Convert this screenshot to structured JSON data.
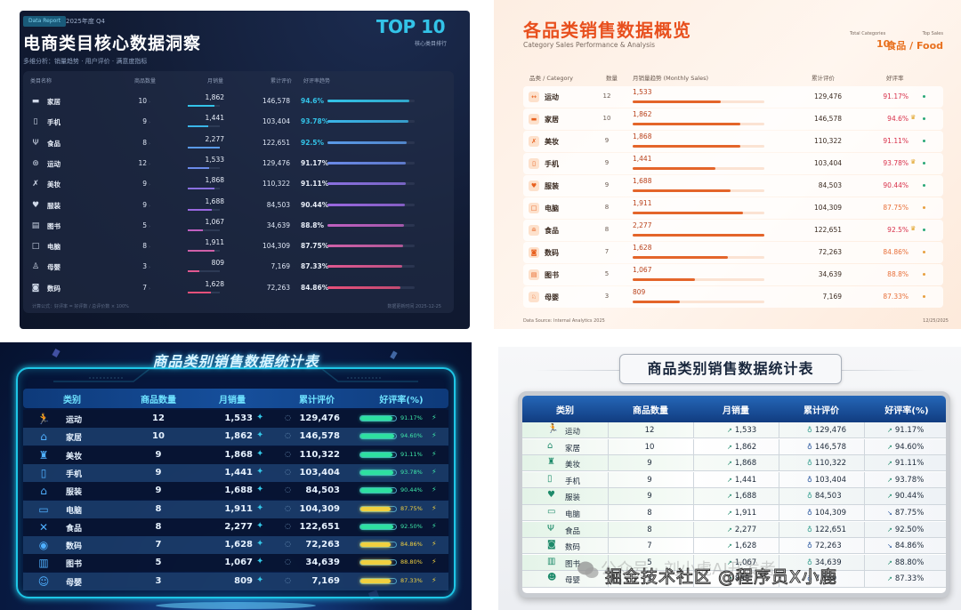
{
  "colors": {
    "p1_accent": "#33c3e8",
    "p2_accent": "#e8501e",
    "p3_accent": "#1ec6e6",
    "p4_header": "#1a4f98"
  },
  "panel1": {
    "tag": "Data Report",
    "period": "2025年度 Q4",
    "title": "电商类目核心数据洞察",
    "subtitle": "多维分析：销量趋势 · 用户评价 · 满意度指标",
    "badge": "TOP 10",
    "badge_sub": "核心类目排行",
    "headers": [
      "类目名称",
      "商品数量",
      "月销量",
      "累计评价",
      "好评率趋势"
    ],
    "rows": [
      {
        "icon": "sofa-icon",
        "glyph": "▬",
        "name": "家居",
        "count": "10",
        "sales": "1,862",
        "sales_pct": 82,
        "reviews": "146,578",
        "rating": "94.6%",
        "rating_pct": 94,
        "color": "#33c3e8",
        "rating_color": "#33c3e8"
      },
      {
        "icon": "phone-icon",
        "glyph": "▯",
        "name": "手机",
        "count": "9",
        "sales": "1,441",
        "sales_pct": 63,
        "reviews": "103,404",
        "rating": "93.78%",
        "rating_pct": 93,
        "color": "#3ab5e8",
        "rating_color": "#33c3e8"
      },
      {
        "icon": "utensils-icon",
        "glyph": "Ψ",
        "name": "食品",
        "count": "8",
        "sales": "2,277",
        "sales_pct": 100,
        "reviews": "122,651",
        "rating": "92.5%",
        "rating_pct": 91,
        "color": "#5a9ae8",
        "rating_color": "#33c3e8"
      },
      {
        "icon": "ball-icon",
        "glyph": "⊛",
        "name": "运动",
        "count": "12",
        "sales": "1,533",
        "sales_pct": 67,
        "reviews": "129,476",
        "rating": "91.17%",
        "rating_pct": 90,
        "color": "#6a8ae8",
        "rating_color": "#e8eef8"
      },
      {
        "icon": "makeup-icon",
        "glyph": "✗",
        "name": "美妆",
        "count": "9",
        "sales": "1,868",
        "sales_pct": 82,
        "reviews": "110,322",
        "rating": "91.11%",
        "rating_pct": 90,
        "color": "#8a70e0",
        "rating_color": "#e8eef8"
      },
      {
        "icon": "shirt-icon",
        "glyph": "♥",
        "name": "服装",
        "count": "9",
        "sales": "1,688",
        "sales_pct": 74,
        "reviews": "84,503",
        "rating": "90.44%",
        "rating_pct": 89,
        "color": "#9a68e0",
        "rating_color": "#e8eef8"
      },
      {
        "icon": "book-icon",
        "glyph": "▤",
        "name": "图书",
        "count": "5",
        "sales": "1,067",
        "sales_pct": 47,
        "reviews": "34,639",
        "rating": "88.8%",
        "rating_pct": 88,
        "color": "#c060c0",
        "rating_color": "#e8eef8"
      },
      {
        "icon": "laptop-icon",
        "glyph": "□",
        "name": "电脑",
        "count": "8",
        "sales": "1,911",
        "sales_pct": 84,
        "reviews": "104,309",
        "rating": "87.75%",
        "rating_pct": 87,
        "color": "#d060a8",
        "rating_color": "#e8eef8"
      },
      {
        "icon": "baby-icon",
        "glyph": "♙",
        "name": "母婴",
        "count": "3",
        "sales": "809",
        "sales_pct": 36,
        "reviews": "7,169",
        "rating": "87.33%",
        "rating_pct": 86,
        "color": "#e05890",
        "rating_color": "#e8eef8"
      },
      {
        "icon": "camera-icon",
        "glyph": "◙",
        "name": "数码",
        "count": "7",
        "sales": "1,628",
        "sales_pct": 72,
        "reviews": "72,263",
        "rating": "84.86%",
        "rating_pct": 84,
        "color": "#e8507a",
        "rating_color": "#e8eef8"
      }
    ],
    "footer_left": "计算公式：好评率 = 好评数 / 总评价数 × 100%",
    "footer_right": "数据更新时间 2025-12-25"
  },
  "panel2": {
    "title": "各品类销售数据概览",
    "subtitle": "Category Sales Performance & Analysis",
    "stat1_label": "Total Categories",
    "stat1_value": "10",
    "stat2_label": "Top Sales",
    "stat2_value": "食品 / Food",
    "headers": [
      "品类 / Category",
      "数量",
      "月销量趋势 (Monthly Sales)",
      "累计评价",
      "好评率"
    ],
    "rows": [
      {
        "icon": "dumbbell-icon",
        "glyph": "↔",
        "name": "运动",
        "count": "12",
        "sales": "1,533",
        "sales_pct": 67,
        "reviews": "129,476",
        "rating": "91.17%",
        "crown": "",
        "rating_color": "#d8304a",
        "dot": "#2aa878"
      },
      {
        "icon": "sofa-icon",
        "glyph": "▬",
        "name": "家居",
        "count": "10",
        "sales": "1,862",
        "sales_pct": 82,
        "reviews": "146,578",
        "rating": "94.6%",
        "crown": "♛",
        "rating_color": "#d8304a",
        "dot": "#2aa878"
      },
      {
        "icon": "makeup-icon",
        "glyph": "✗",
        "name": "美妆",
        "count": "9",
        "sales": "1,868",
        "sales_pct": 82,
        "reviews": "110,322",
        "rating": "91.11%",
        "crown": "",
        "rating_color": "#d8304a",
        "dot": "#2aa878"
      },
      {
        "icon": "phone-icon",
        "glyph": "▯",
        "name": "手机",
        "count": "9",
        "sales": "1,441",
        "sales_pct": 63,
        "reviews": "103,404",
        "rating": "93.78%",
        "crown": "♛",
        "rating_color": "#d8304a",
        "dot": "#2aa878"
      },
      {
        "icon": "shirt-icon",
        "glyph": "♥",
        "name": "服装",
        "count": "9",
        "sales": "1,688",
        "sales_pct": 74,
        "reviews": "84,503",
        "rating": "90.44%",
        "crown": "",
        "rating_color": "#d8304a",
        "dot": "#2aa878"
      },
      {
        "icon": "laptop-icon",
        "glyph": "□",
        "name": "电脑",
        "count": "8",
        "sales": "1,911",
        "sales_pct": 84,
        "reviews": "104,309",
        "rating": "87.75%",
        "crown": "",
        "rating_color": "#e8703a",
        "dot": "#e8a040"
      },
      {
        "icon": "food-icon",
        "glyph": "≘",
        "name": "食品",
        "count": "8",
        "sales": "2,277",
        "sales_pct": 100,
        "reviews": "122,651",
        "rating": "92.5%",
        "crown": "♛",
        "rating_color": "#d8304a",
        "dot": "#2aa878"
      },
      {
        "icon": "camera-icon",
        "glyph": "◙",
        "name": "数码",
        "count": "7",
        "sales": "1,628",
        "sales_pct": 72,
        "reviews": "72,263",
        "rating": "84.86%",
        "crown": "",
        "rating_color": "#e8703a",
        "dot": "#e8a040"
      },
      {
        "icon": "book-icon",
        "glyph": "▤",
        "name": "图书",
        "count": "5",
        "sales": "1,067",
        "sales_pct": 47,
        "reviews": "34,639",
        "rating": "88.8%",
        "crown": "",
        "rating_color": "#e8703a",
        "dot": "#e8a040"
      },
      {
        "icon": "baby-icon",
        "glyph": "♘",
        "name": "母婴",
        "count": "3",
        "sales": "809",
        "sales_pct": 36,
        "reviews": "7,169",
        "rating": "87.33%",
        "crown": "",
        "rating_color": "#e8703a",
        "dot": "#e8a040"
      }
    ],
    "footer_left": "Data Source: Internal Analytics 2025",
    "footer_right": "12/25/2025"
  },
  "panel3": {
    "title": "商品类别销售数据统计表",
    "headers": [
      "类别",
      "商品数量",
      "月销量",
      "累计评价",
      "好评率(%)"
    ],
    "rows": [
      {
        "icon": "runner-icon",
        "glyph": "🏃",
        "name": "运动",
        "count": "12",
        "sales": "1,533",
        "reviews": "129,476",
        "rating": "91.17%",
        "rating_pct": 90,
        "bar_color": "#2ee0a0",
        "text_color": "#3ee8a8"
      },
      {
        "icon": "house-icon",
        "glyph": "⌂",
        "name": "家居",
        "count": "10",
        "sales": "1,862",
        "reviews": "146,578",
        "rating": "94.60%",
        "rating_pct": 94,
        "bar_color": "#2ee0a0",
        "text_color": "#3ee8a8"
      },
      {
        "icon": "cosmetics-icon",
        "glyph": "♜",
        "name": "美妆",
        "count": "9",
        "sales": "1,868",
        "reviews": "110,322",
        "rating": "91.11%",
        "rating_pct": 90,
        "bar_color": "#2ee0a0",
        "text_color": "#3ee8a8"
      },
      {
        "icon": "phone-icon",
        "glyph": "▯",
        "name": "手机",
        "count": "9",
        "sales": "1,441",
        "reviews": "103,404",
        "rating": "93.78%",
        "rating_pct": 93,
        "bar_color": "#2ee0a0",
        "text_color": "#3ee8a8"
      },
      {
        "icon": "hanger-icon",
        "glyph": "⌂",
        "name": "服装",
        "count": "9",
        "sales": "1,688",
        "reviews": "84,503",
        "rating": "90.44%",
        "rating_pct": 89,
        "bar_color": "#2ee0a0",
        "text_color": "#3ee8a8"
      },
      {
        "icon": "laptop-icon",
        "glyph": "▭",
        "name": "电脑",
        "count": "8",
        "sales": "1,911",
        "reviews": "104,309",
        "rating": "87.75%",
        "rating_pct": 86,
        "bar_color": "#f0d040",
        "text_color": "#f0d040"
      },
      {
        "icon": "utensils-icon",
        "glyph": "✕",
        "name": "食品",
        "count": "8",
        "sales": "2,277",
        "reviews": "122,651",
        "rating": "92.50%",
        "rating_pct": 92,
        "bar_color": "#2ee0a0",
        "text_color": "#3ee8a8"
      },
      {
        "icon": "camera-icon",
        "glyph": "◉",
        "name": "数码",
        "count": "7",
        "sales": "1,628",
        "reviews": "72,263",
        "rating": "84.86%",
        "rating_pct": 84,
        "bar_color": "#f0d040",
        "text_color": "#f0d040"
      },
      {
        "icon": "book-icon",
        "glyph": "▥",
        "name": "图书",
        "count": "5",
        "sales": "1,067",
        "reviews": "34,639",
        "rating": "88.80%",
        "rating_pct": 88,
        "bar_color": "#f0d040",
        "text_color": "#f0d040"
      },
      {
        "icon": "baby-icon",
        "glyph": "☺",
        "name": "母婴",
        "count": "3",
        "sales": "809",
        "reviews": "7,169",
        "rating": "87.33%",
        "rating_pct": 86,
        "bar_color": "#f0d040",
        "text_color": "#f0d040"
      }
    ],
    "sales_icon": "✦",
    "shield_icon": "◌",
    "bolt_icon": "⚡"
  },
  "panel4": {
    "title": "商品类别销售数据统计表",
    "headers": [
      "类别",
      "商品数量",
      "月销量",
      "累计评价",
      "好评率(%)"
    ],
    "rows": [
      {
        "icon": "runner-icon",
        "glyph": "🏃",
        "name": "运动",
        "count": "12",
        "sales": "1,533",
        "reviews": "129,476",
        "rating": "91.17%",
        "trend": "↗",
        "medal_color": "#2a9a8a"
      },
      {
        "icon": "house-icon",
        "glyph": "⌂",
        "name": "家居",
        "count": "10",
        "sales": "1,862",
        "reviews": "146,578",
        "rating": "94.60%",
        "trend": "↗",
        "medal_color": "#1f4f9a"
      },
      {
        "icon": "cosmetics-icon",
        "glyph": "♜",
        "name": "美妆",
        "count": "9",
        "sales": "1,868",
        "reviews": "110,322",
        "rating": "91.11%",
        "trend": "↗",
        "medal_color": "#2a9a8a"
      },
      {
        "icon": "phone-icon",
        "glyph": "▯",
        "name": "手机",
        "count": "9",
        "sales": "1,441",
        "reviews": "103,404",
        "rating": "93.78%",
        "trend": "↗",
        "medal_color": "#1f4f9a"
      },
      {
        "icon": "shirt-icon",
        "glyph": "♥",
        "name": "服装",
        "count": "9",
        "sales": "1,688",
        "reviews": "84,503",
        "rating": "90.44%",
        "trend": "↗",
        "medal_color": "#2a9a8a"
      },
      {
        "icon": "laptop-icon",
        "glyph": "▭",
        "name": "电脑",
        "count": "8",
        "sales": "1,911",
        "reviews": "104,309",
        "rating": "87.75%",
        "trend": "↘",
        "medal_color": "#1f4f9a"
      },
      {
        "icon": "utensils-icon",
        "glyph": "Ψ",
        "name": "食品",
        "count": "8",
        "sales": "2,277",
        "reviews": "122,651",
        "rating": "92.50%",
        "trend": "↗",
        "medal_color": "#2a9a8a"
      },
      {
        "icon": "camera-icon",
        "glyph": "◙",
        "name": "数码",
        "count": "7",
        "sales": "1,628",
        "reviews": "72,263",
        "rating": "84.86%",
        "trend": "↘",
        "medal_color": "#1f4f9a"
      },
      {
        "icon": "book-icon",
        "glyph": "▥",
        "name": "图书",
        "count": "5",
        "sales": "1,067",
        "reviews": "34,639",
        "rating": "88.80%",
        "trend": "↗",
        "medal_color": "#2a9a8a"
      },
      {
        "icon": "baby-icon",
        "glyph": "☻",
        "name": "母婴",
        "count": "3",
        "sales": "809",
        "reviews": "7,169",
        "rating": "87.33%",
        "trend": "↗",
        "medal_color": "#1f4f9a"
      }
    ],
    "medal_icon": "♁",
    "watermark_faint": "公众号 · 刘小虎AI开发者",
    "watermark": "掘金技术社区 @程序员X小鹿"
  }
}
